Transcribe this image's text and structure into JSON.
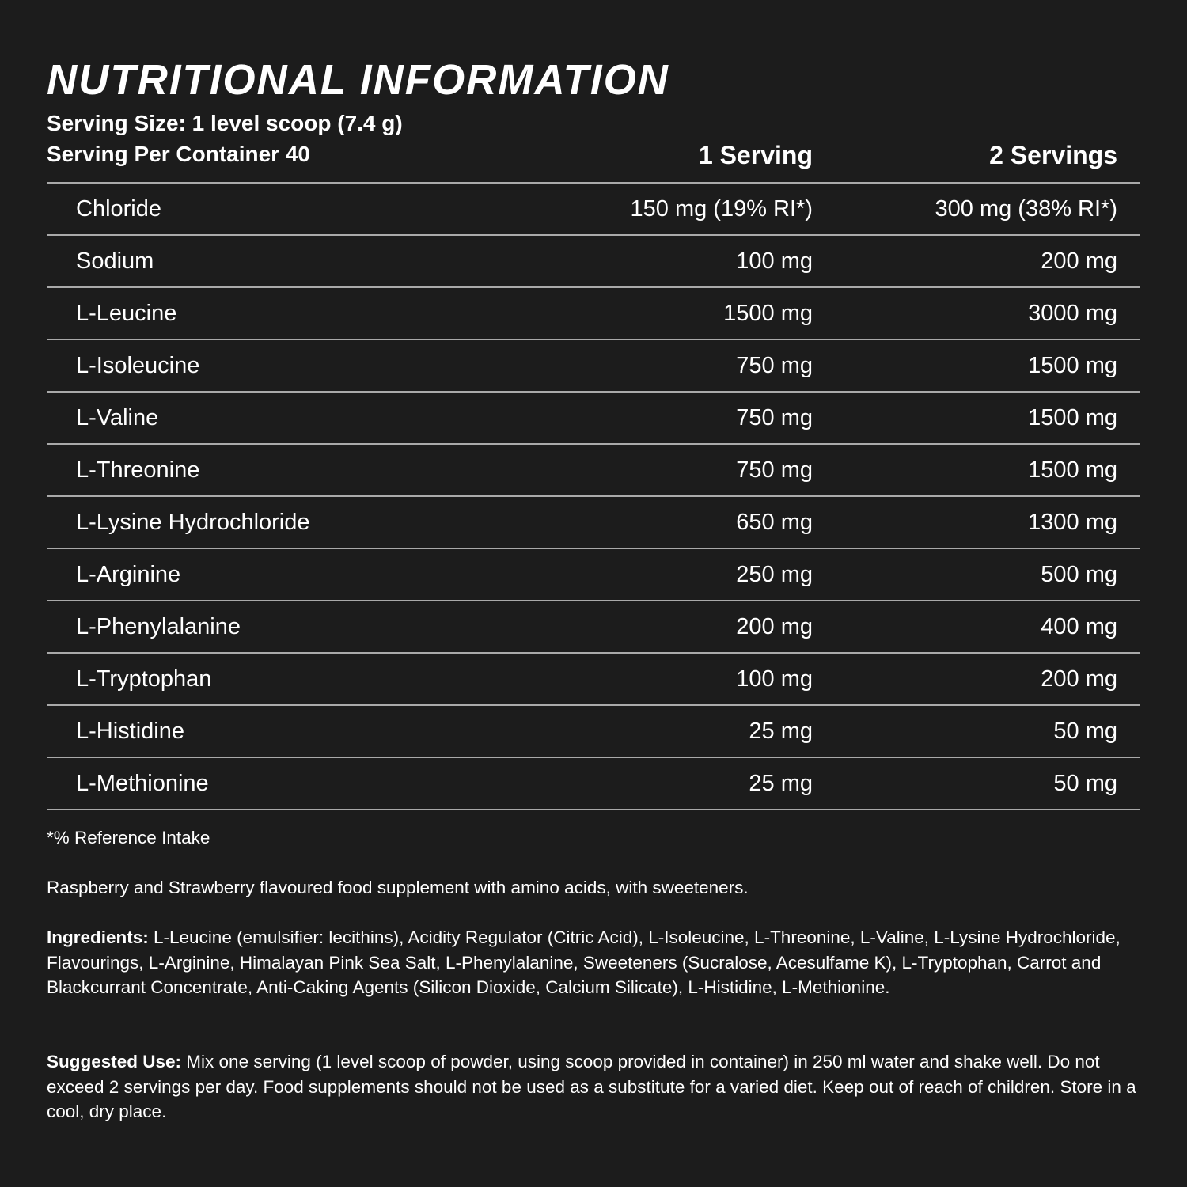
{
  "title": "NUTRITIONAL INFORMATION",
  "serving_size": "Serving Size: 1 level scoop (7.4 g)",
  "servings_per_container": "Serving Per Container 40",
  "columns": [
    "1 Serving",
    "2 Servings"
  ],
  "rows": [
    {
      "name": "Chloride",
      "one": "150 mg (19% RI*)",
      "two": "300 mg (38% RI*)"
    },
    {
      "name": "Sodium",
      "one": "100 mg",
      "two": "200 mg"
    },
    {
      "name": "L-Leucine",
      "one": "1500 mg",
      "two": "3000 mg"
    },
    {
      "name": "L-Isoleucine",
      "one": "750 mg",
      "two": "1500 mg"
    },
    {
      "name": "L-Valine",
      "one": "750 mg",
      "two": "1500 mg"
    },
    {
      "name": "L-Threonine",
      "one": "750 mg",
      "two": "1500 mg"
    },
    {
      "name": "L-Lysine Hydrochloride",
      "one": "650 mg",
      "two": "1300 mg"
    },
    {
      "name": "L-Arginine",
      "one": "250 mg",
      "two": "500 mg"
    },
    {
      "name": "L-Phenylalanine",
      "one": "200 mg",
      "two": "400 mg"
    },
    {
      "name": "L-Tryptophan",
      "one": "100 mg",
      "two": "200 mg"
    },
    {
      "name": "L-Histidine",
      "one": "25 mg",
      "two": "50 mg"
    },
    {
      "name": "L-Methionine",
      "one": "25 mg",
      "two": "50 mg"
    }
  ],
  "footnote": "*% Reference Intake",
  "description": "Raspberry and Strawberry flavoured food supplement with amino acids, with sweeteners.",
  "ingredients_label": "Ingredients:",
  "ingredients": " L-Leucine (emulsifier: lecithins), Acidity Regulator (Citric Acid), L-Isoleucine, L-Threonine, L-Valine, L-Lysine Hydrochloride, Flavourings, L-Arginine, Himalayan Pink Sea Salt, L-Phenylalanine, Sweeteners (Sucralose, Acesulfame K), L-Tryptophan, Carrot and Blackcurrant Concentrate, Anti-Caking Agents (Silicon Dioxide, Calcium Silicate), L-Histidine, L-Methionine.",
  "suggested_label": "Suggested Use:",
  "suggested": " Mix one serving (1 level scoop of powder, using scoop provided in container) in 250 ml water and shake well. Do not exceed 2 servings per day. Food supplements should not be used as a substitute for a varied diet. Keep out of reach of children. Store in a cool, dry place."
}
